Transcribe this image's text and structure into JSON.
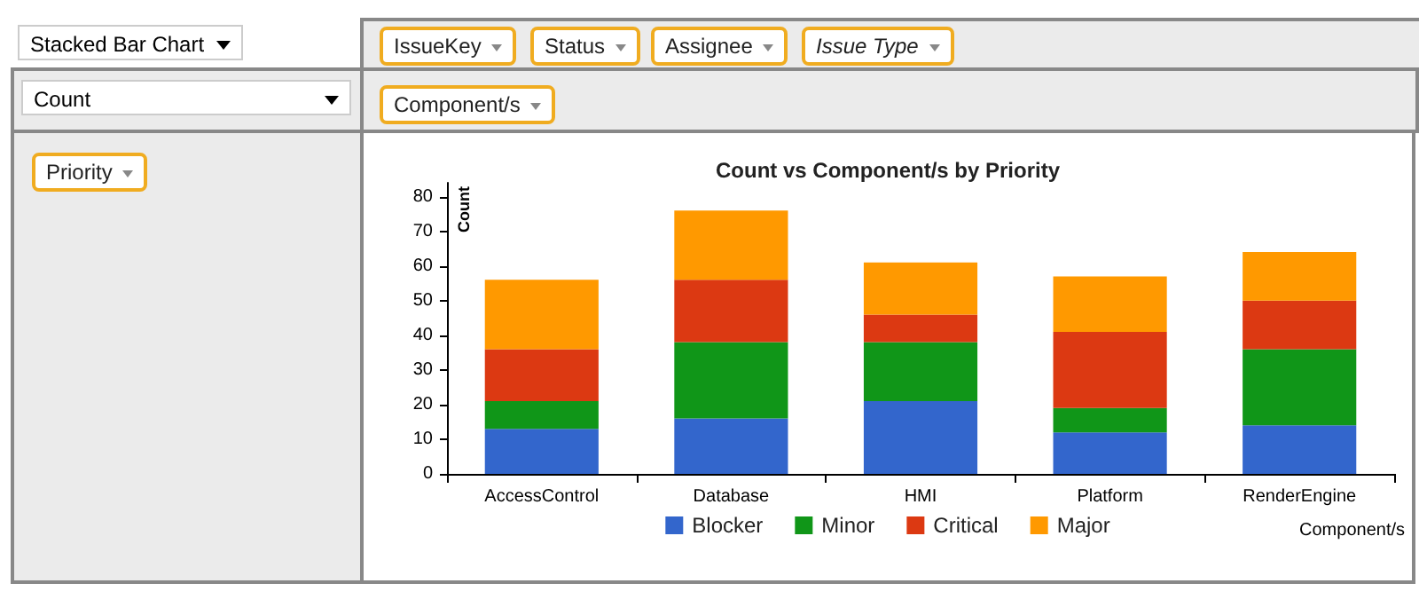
{
  "chart_data": {
    "type": "bar",
    "stacked": true,
    "title": "Count vs Component/s by Priority",
    "xlabel": "Component/s",
    "ylabel": "Count",
    "categories": [
      "AccessControl",
      "Database",
      "HMI",
      "Platform",
      "RenderEngine"
    ],
    "series": [
      {
        "name": "Blocker",
        "color": "#3366cc",
        "values": [
          13,
          16,
          21,
          12,
          14
        ]
      },
      {
        "name": "Minor",
        "color": "#109618",
        "values": [
          8,
          22,
          17,
          7,
          22
        ]
      },
      {
        "name": "Critical",
        "color": "#dc3912",
        "values": [
          15,
          18,
          8,
          22,
          14
        ]
      },
      {
        "name": "Major",
        "color": "#ff9900",
        "values": [
          20,
          20,
          15,
          16,
          14
        ]
      }
    ],
    "ylim": [
      0,
      84
    ],
    "yticks": [
      0,
      10,
      20,
      30,
      40,
      50,
      60,
      70,
      80
    ],
    "grid": false,
    "legend": "bottom",
    "annotations": [
      "Stacked Bar Chart",
      "IssueKey",
      "Status",
      "Assignee",
      "Issue Type",
      "Count",
      "Component/s",
      "Priority"
    ]
  }
}
